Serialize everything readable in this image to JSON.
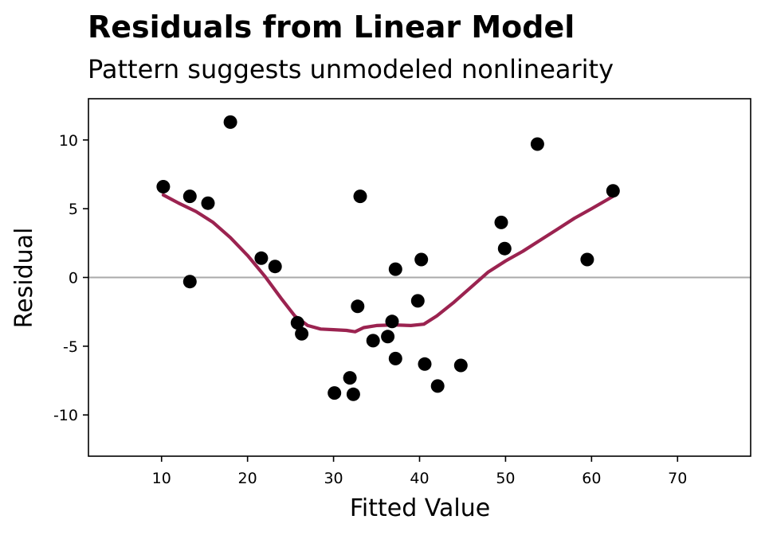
{
  "chart_data": {
    "type": "scatter",
    "title": "Residuals from Linear Model",
    "subtitle": "Pattern suggests unmodeled nonlinearity",
    "xlabel": "Fitted Value",
    "ylabel": "Residual",
    "xlim": [
      1.5,
      78.5
    ],
    "ylim": [
      -13,
      13
    ],
    "xticks": [
      10,
      20,
      30,
      40,
      50,
      60,
      70
    ],
    "yticks": [
      10,
      5,
      0,
      -5,
      -10
    ],
    "xtick_labels": [
      "10",
      "20",
      "30",
      "40",
      "50",
      "60",
      "70"
    ],
    "ytick_labels": [
      "10",
      "5",
      "0",
      "-5",
      "-10"
    ],
    "reference_line_y": 0,
    "grid": false,
    "points": [
      {
        "x": 10.2,
        "y": 6.6
      },
      {
        "x": 13.3,
        "y": 5.9
      },
      {
        "x": 13.3,
        "y": -0.3
      },
      {
        "x": 15.4,
        "y": 5.4
      },
      {
        "x": 18.0,
        "y": 11.3
      },
      {
        "x": 21.6,
        "y": 1.4
      },
      {
        "x": 23.2,
        "y": 0.8
      },
      {
        "x": 25.8,
        "y": -3.3
      },
      {
        "x": 26.3,
        "y": -4.1
      },
      {
        "x": 30.1,
        "y": -8.4
      },
      {
        "x": 31.9,
        "y": -7.3
      },
      {
        "x": 32.3,
        "y": -8.5
      },
      {
        "x": 32.8,
        "y": -2.1
      },
      {
        "x": 33.1,
        "y": 5.9
      },
      {
        "x": 34.6,
        "y": -4.6
      },
      {
        "x": 36.3,
        "y": -4.3
      },
      {
        "x": 36.8,
        "y": -3.2
      },
      {
        "x": 37.2,
        "y": 0.6
      },
      {
        "x": 37.2,
        "y": -5.9
      },
      {
        "x": 39.8,
        "y": -1.7
      },
      {
        "x": 40.2,
        "y": 1.3
      },
      {
        "x": 40.6,
        "y": -6.3
      },
      {
        "x": 42.1,
        "y": -7.9
      },
      {
        "x": 44.8,
        "y": -6.4
      },
      {
        "x": 49.5,
        "y": 4.0
      },
      {
        "x": 49.9,
        "y": 2.1
      },
      {
        "x": 53.7,
        "y": 9.7
      },
      {
        "x": 59.5,
        "y": 1.3
      },
      {
        "x": 62.5,
        "y": 6.3
      }
    ],
    "smooth_line": {
      "x": [
        10.2,
        12,
        14,
        16,
        18,
        20,
        22,
        24,
        25.5,
        27,
        28.5,
        30,
        31.5,
        32.5,
        33.5,
        35,
        37,
        39,
        40.5,
        42,
        44,
        46,
        48,
        50,
        52,
        54,
        56,
        58,
        60,
        62.5
      ],
      "y": [
        6.0,
        5.4,
        4.8,
        4.0,
        2.9,
        1.6,
        0.1,
        -1.6,
        -2.8,
        -3.5,
        -3.75,
        -3.8,
        -3.85,
        -3.95,
        -3.65,
        -3.5,
        -3.45,
        -3.5,
        -3.4,
        -2.8,
        -1.8,
        -0.7,
        0.4,
        1.2,
        1.9,
        2.7,
        3.5,
        4.3,
        5.0,
        5.9
      ]
    },
    "colors": {
      "points": "#000000",
      "smooth_line": "#9b2350",
      "reference_line": "#aaaaaa"
    }
  }
}
